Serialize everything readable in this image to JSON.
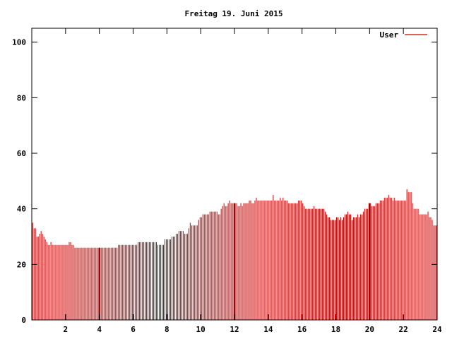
{
  "chart_data": {
    "type": "bar",
    "title": "Freitag 19. Juni 2015",
    "xlabel": "",
    "ylabel": "",
    "xlim": [
      0,
      24
    ],
    "ylim": [
      0,
      105
    ],
    "x_ticks": [
      "2",
      "4",
      "6",
      "8",
      "10",
      "12",
      "14",
      "16",
      "18",
      "20",
      "22",
      "24"
    ],
    "y_ticks": [
      "0",
      "20",
      "40",
      "60",
      "80",
      "100"
    ],
    "legend_position": "top-right",
    "grid": false,
    "series": [
      {
        "name": "User",
        "color": "#cc0000",
        "x_step_hours": 0.0833,
        "values": [
          35,
          33,
          33,
          30,
          30,
          31,
          32,
          31,
          30,
          29,
          28,
          27,
          27,
          28,
          27,
          27,
          27,
          27,
          27,
          27,
          27,
          27,
          27,
          27,
          27,
          27,
          28,
          28,
          27,
          27,
          26,
          26,
          26,
          26,
          26,
          26,
          26,
          26,
          26,
          26,
          26,
          26,
          26,
          26,
          26,
          26,
          26,
          26,
          26,
          26,
          26,
          26,
          26,
          26,
          26,
          26,
          26,
          26,
          26,
          26,
          26,
          27,
          27,
          27,
          27,
          27,
          27,
          27,
          27,
          27,
          27,
          27,
          27,
          27,
          27,
          28,
          28,
          28,
          28,
          28,
          28,
          28,
          28,
          28,
          28,
          28,
          28,
          28,
          28,
          27,
          27,
          27,
          27,
          27,
          29,
          29,
          29,
          29,
          29,
          30,
          30,
          30,
          31,
          31,
          32,
          32,
          32,
          32,
          31,
          31,
          31,
          33,
          35,
          34,
          34,
          34,
          34,
          34,
          36,
          37,
          37,
          38,
          38,
          38,
          38,
          38,
          39,
          39,
          39,
          39,
          39,
          39,
          38,
          38,
          40,
          41,
          42,
          41,
          41,
          42,
          43,
          42,
          42,
          42,
          42,
          42,
          41,
          41,
          42,
          41,
          42,
          42,
          42,
          42,
          43,
          43,
          42,
          42,
          43,
          44,
          43,
          43,
          43,
          43,
          43,
          43,
          43,
          43,
          43,
          43,
          43,
          45,
          43,
          43,
          43,
          43,
          44,
          43,
          44,
          43,
          43,
          43,
          42,
          42,
          42,
          42,
          42,
          42,
          42,
          43,
          43,
          43,
          42,
          41,
          40,
          40,
          40,
          40,
          40,
          40,
          41,
          40,
          40,
          40,
          40,
          40,
          40,
          40,
          39,
          38,
          37,
          37,
          36,
          36,
          36,
          36,
          37,
          37,
          36,
          37,
          36,
          37,
          38,
          38,
          39,
          38,
          38,
          36,
          37,
          37,
          37,
          38,
          37,
          38,
          38,
          39,
          40,
          40,
          40,
          42,
          42,
          41,
          41,
          41,
          42,
          42,
          42,
          43,
          43,
          43,
          44,
          44,
          44,
          45,
          44,
          44,
          43,
          44,
          43,
          43,
          43,
          43,
          43,
          43,
          43,
          43,
          47,
          46,
          46,
          46,
          42,
          40,
          40,
          40,
          40,
          38,
          38,
          38,
          38,
          38,
          38,
          39,
          37,
          37,
          36,
          34,
          34,
          34,
          34,
          34,
          35,
          35
        ]
      }
    ],
    "markers": [
      4,
      12,
      20
    ]
  }
}
